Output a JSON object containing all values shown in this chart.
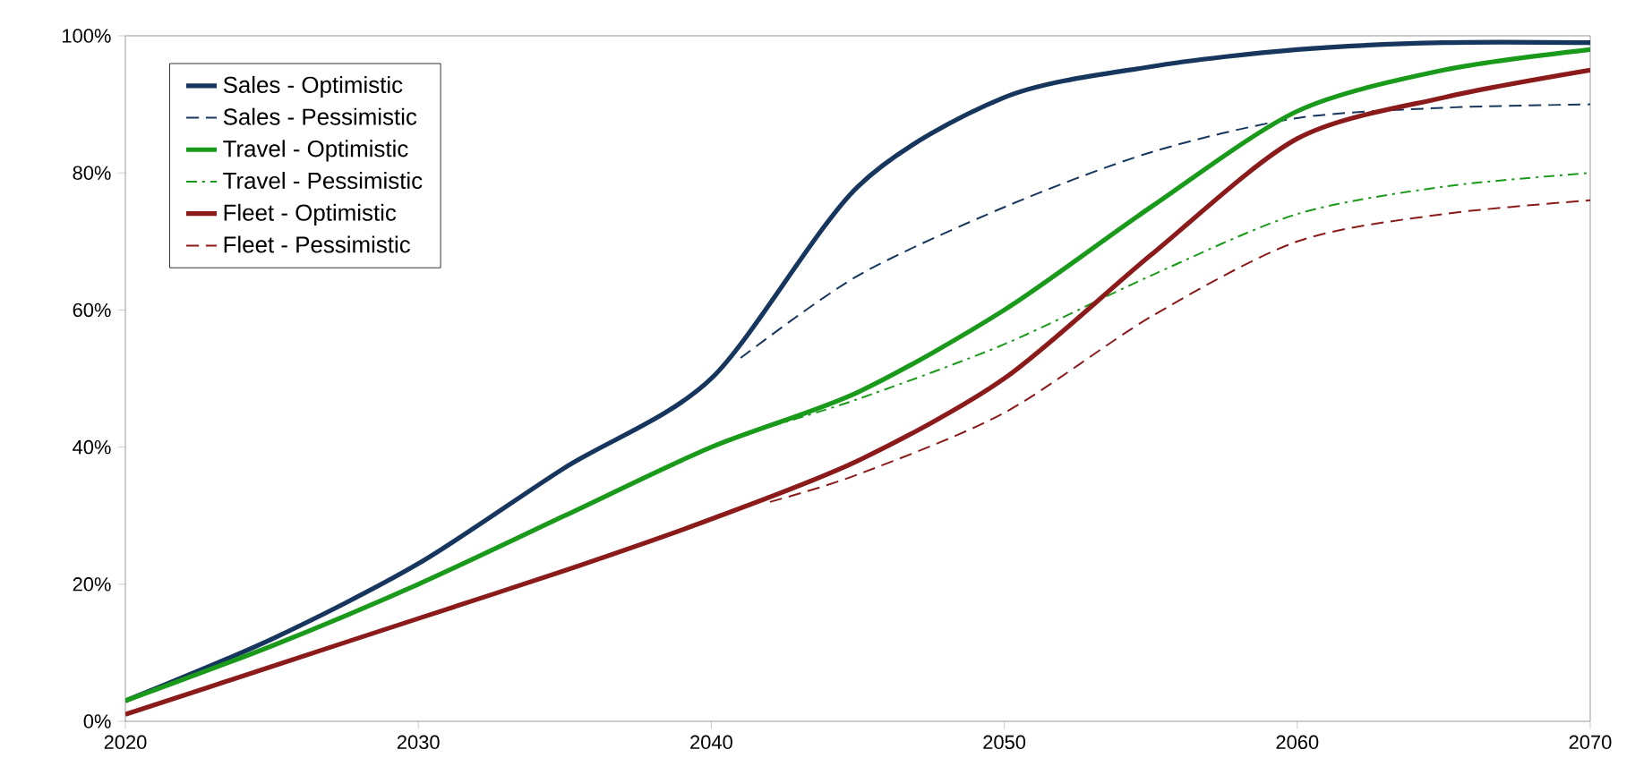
{
  "chart_data": {
    "type": "line",
    "xlim": [
      2020,
      2070
    ],
    "xticks": [
      2020,
      2030,
      2040,
      2050,
      2060,
      2070
    ],
    "ylim": [
      0,
      100
    ],
    "yticks": [
      {
        "value": 0,
        "label": "0%"
      },
      {
        "value": 20,
        "label": "20%"
      },
      {
        "value": 40,
        "label": "40%"
      },
      {
        "value": 60,
        "label": "60%"
      },
      {
        "value": 80,
        "label": "80%"
      },
      {
        "value": 100,
        "label": "100%"
      }
    ],
    "grid": false,
    "legend": "top left",
    "marker": "none",
    "series": [
      {
        "name": "Sales - Optimistic",
        "color": "#17365d",
        "line_style": "solid",
        "x": [
          2020,
          2025,
          2030,
          2035,
          2040,
          2045,
          2050,
          2055,
          2060,
          2065,
          2070
        ],
        "values": [
          3,
          12,
          23,
          37,
          50,
          78,
          91,
          95.5,
          98,
          99,
          99
        ]
      },
      {
        "name": "Sales - Pessimistic",
        "color": "#17365d",
        "line_style": "dashed",
        "x": [
          2041,
          2045,
          2050,
          2055,
          2060,
          2065,
          2070
        ],
        "values": [
          53,
          65,
          75,
          83,
          88,
          89.5,
          90
        ]
      },
      {
        "name": "Travel - Optimistic",
        "color": "#1a9a1a",
        "line_style": "solid",
        "x": [
          2020,
          2025,
          2030,
          2035,
          2040,
          2045,
          2050,
          2055,
          2060,
          2065,
          2070
        ],
        "values": [
          3,
          11,
          20,
          30,
          40,
          48,
          60,
          75,
          89,
          95,
          98
        ]
      },
      {
        "name": "Travel -  Pessimistic",
        "color": "#1a9a1a",
        "line_style": "dashdot",
        "x": [
          2042,
          2045,
          2050,
          2055,
          2060,
          2065,
          2070
        ],
        "values": [
          43,
          47,
          55,
          65,
          74,
          78,
          80
        ]
      },
      {
        "name": "Fleet - Optimistic",
        "color": "#8b1a1a",
        "line_style": "solid",
        "x": [
          2020,
          2025,
          2030,
          2035,
          2040,
          2045,
          2050,
          2055,
          2060,
          2065,
          2070
        ],
        "values": [
          1,
          8,
          15,
          22,
          29.5,
          38,
          50,
          68,
          85,
          91,
          95
        ]
      },
      {
        "name": "Fleet -  Pessimistic",
        "color": "#8b1a1a",
        "line_style": "dashed",
        "x": [
          2042,
          2045,
          2050,
          2055,
          2060,
          2065,
          2070
        ],
        "values": [
          32,
          36,
          45,
          59,
          70,
          74,
          76
        ]
      }
    ]
  }
}
